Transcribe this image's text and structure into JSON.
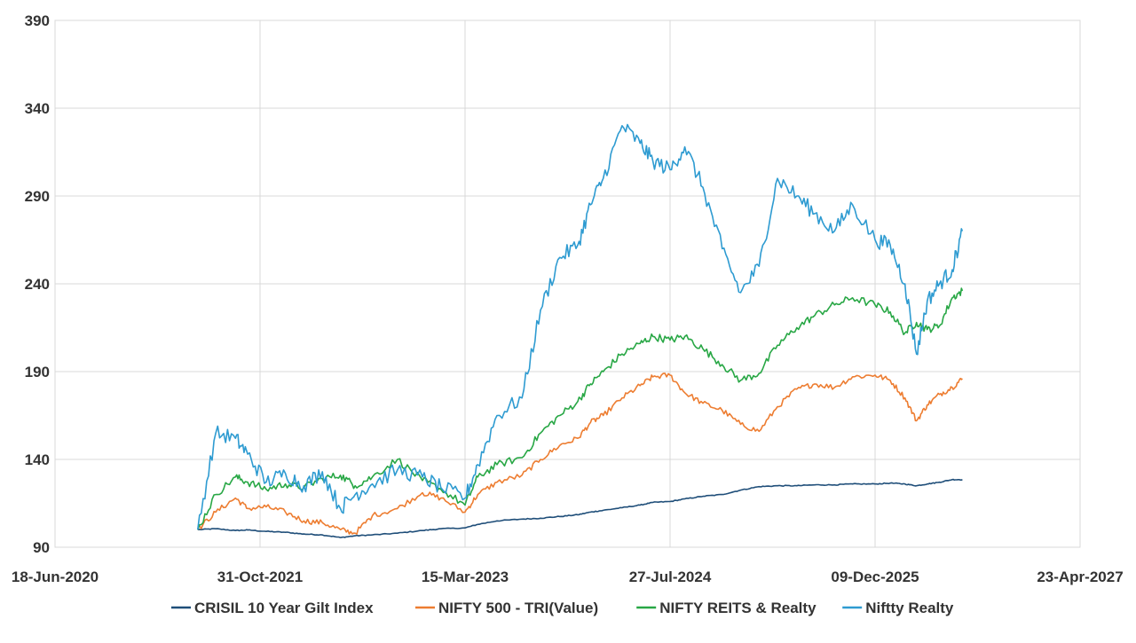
{
  "chart_data": {
    "type": "line",
    "title": "",
    "xlabel": "",
    "ylabel": "",
    "x_axis": {
      "scale": "date",
      "range": [
        "2020-06-18",
        "2027-04-23"
      ],
      "ticks": [
        "2020-06-18",
        "2021-10-31",
        "2023-03-15",
        "2024-07-27",
        "2025-12-09",
        "2027-04-23"
      ],
      "tick_labels": [
        "18-Jun-2020",
        "31-Oct-2021",
        "15-Mar-2023",
        "27-Jul-2024",
        "09-Dec-2025",
        "23-Apr-2027"
      ]
    },
    "y_axis": {
      "range": [
        90,
        390
      ],
      "ticks": [
        90,
        140,
        190,
        240,
        290,
        340,
        390
      ],
      "tick_labels": [
        "90",
        "140",
        "190",
        "240",
        "290",
        "340",
        "390"
      ]
    },
    "grid": true,
    "legend_position": "bottom",
    "x": [
      "2021-06-01",
      "2021-07-15",
      "2021-09-01",
      "2021-10-01",
      "2021-11-15",
      "2022-01-01",
      "2022-02-15",
      "2022-04-01",
      "2022-05-15",
      "2022-06-20",
      "2022-08-01",
      "2022-10-01",
      "2022-12-01",
      "2023-01-15",
      "2023-03-15",
      "2023-04-15",
      "2023-06-01",
      "2023-08-01",
      "2023-09-15",
      "2023-11-01",
      "2023-12-15",
      "2024-01-15",
      "2024-02-15",
      "2024-04-01",
      "2024-05-15",
      "2024-06-15",
      "2024-07-27",
      "2024-09-01",
      "2024-10-15",
      "2024-12-01",
      "2025-01-15",
      "2025-03-01",
      "2025-04-15",
      "2025-06-01",
      "2025-07-15",
      "2025-09-01",
      "2025-10-15",
      "2025-12-09",
      "2026-01-15",
      "2026-02-20",
      "2026-03-20",
      "2026-04-15",
      "2026-05-15",
      "2026-06-15",
      "2026-07-10"
    ],
    "series": [
      {
        "name": "CRISIL 10 Year Gilt Index",
        "color": "#1f4e79",
        "values": [
          100,
          100.5,
          99.5,
          99.8,
          99,
          98.5,
          97.5,
          97,
          95.5,
          96.5,
          97,
          98,
          99.5,
          100.5,
          101,
          103,
          105,
          106,
          106.5,
          107.5,
          108.5,
          110,
          111,
          112.5,
          114,
          115.5,
          116,
          117.5,
          119,
          120,
          122.5,
          124.5,
          125,
          125,
          125.5,
          125.5,
          126,
          126,
          126.5,
          126,
          125,
          126,
          127,
          128.5,
          128.5
        ]
      },
      {
        "name": "NIFTY 500 - TRI(Value)",
        "color": "#ed7d31",
        "values": [
          100,
          110,
          118,
          112,
          113,
          110,
          105,
          104,
          100,
          98,
          108,
          112,
          121,
          118,
          110,
          120,
          127,
          131,
          140,
          148,
          152,
          161,
          165,
          175,
          182,
          187,
          188,
          178,
          172,
          168,
          160,
          156,
          170,
          180,
          183,
          181,
          187,
          188,
          185,
          175,
          162,
          171,
          177,
          181,
          186
        ]
      },
      {
        "name": "NIFTY REITS & Realty",
        "color": "#28a745",
        "values": [
          100,
          120,
          130,
          127,
          123,
          126,
          124,
          129,
          131,
          125,
          130,
          140,
          128,
          123,
          114,
          130,
          137,
          141,
          155,
          165,
          173,
          183,
          190,
          200,
          206,
          210,
          208,
          210,
          203,
          194,
          185,
          189,
          205,
          215,
          222,
          228,
          232,
          228,
          224,
          212,
          218,
          214,
          216,
          232,
          236
        ]
      },
      {
        "name": "Niftty Realty",
        "color": "#2e9bd1",
        "values": [
          100,
          155,
          152,
          143,
          127,
          132,
          125,
          133,
          112,
          120,
          126,
          134,
          130,
          124,
          118,
          137,
          165,
          175,
          225,
          255,
          262,
          285,
          300,
          330,
          320,
          310,
          305,
          318,
          295,
          260,
          235,
          250,
          300,
          290,
          280,
          270,
          285,
          265,
          262,
          240,
          200,
          230,
          240,
          248,
          270
        ]
      }
    ]
  }
}
